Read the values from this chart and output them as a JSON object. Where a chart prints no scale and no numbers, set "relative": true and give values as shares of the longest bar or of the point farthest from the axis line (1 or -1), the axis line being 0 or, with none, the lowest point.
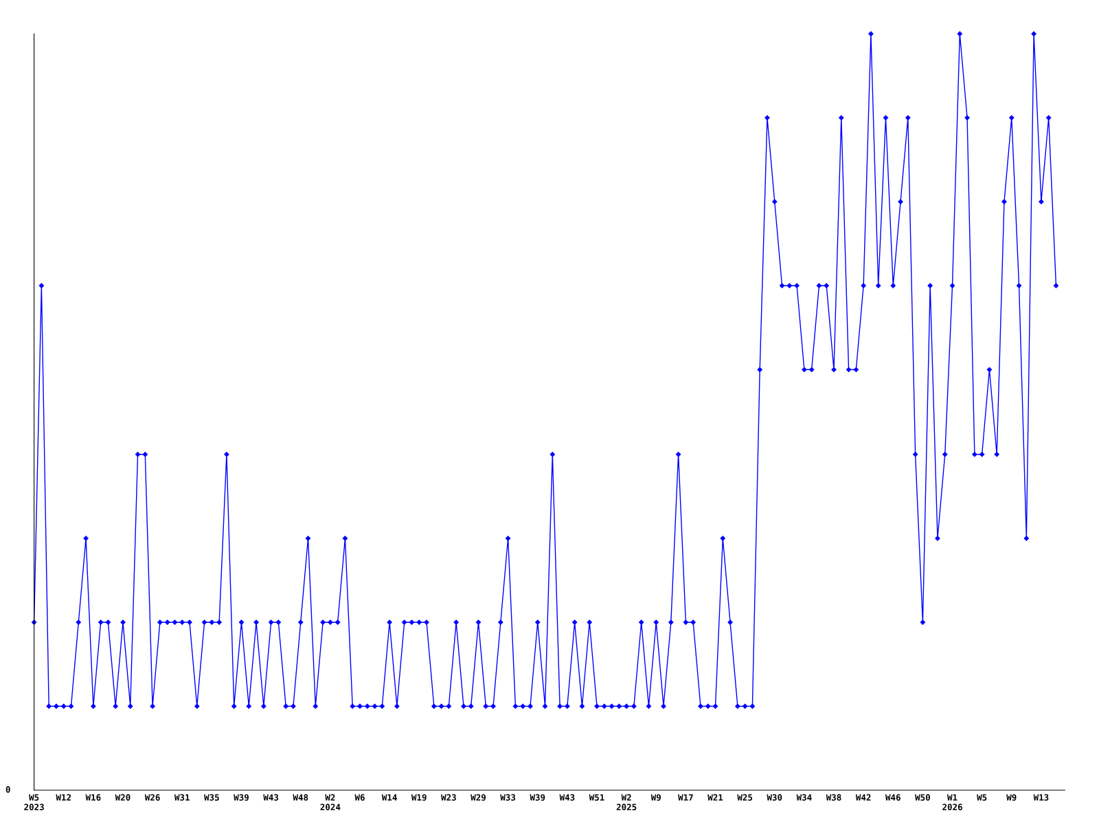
{
  "chart_data": {
    "type": "line",
    "relative": true,
    "color": "#0000ff",
    "marker": "diamond",
    "grid": false,
    "legend": false,
    "annotations": [
      "0"
    ],
    "categories": [
      "W5\n2023",
      null,
      null,
      null,
      "W12",
      null,
      null,
      null,
      "W16",
      null,
      null,
      null,
      "W20",
      null,
      null,
      null,
      "W26",
      null,
      null,
      null,
      "W31",
      null,
      null,
      null,
      "W35",
      null,
      null,
      null,
      "W39",
      null,
      null,
      null,
      "W43",
      null,
      null,
      null,
      "W48",
      null,
      null,
      null,
      "W2\n2024",
      null,
      null,
      null,
      "W6",
      null,
      null,
      null,
      "W14",
      null,
      null,
      null,
      "W19",
      null,
      null,
      null,
      "W23",
      null,
      null,
      null,
      "W29",
      null,
      null,
      null,
      "W33",
      null,
      null,
      null,
      "W39",
      null,
      null,
      null,
      "W43",
      null,
      null,
      null,
      "W51",
      null,
      null,
      null,
      "W2\n2025",
      null,
      null,
      null,
      "W9",
      null,
      null,
      null,
      "W17",
      null,
      null,
      null,
      "W21",
      null,
      null,
      null,
      "W25",
      null,
      null,
      null,
      "W30",
      null,
      null,
      null,
      "W34",
      null,
      null,
      null,
      "W38",
      null,
      null,
      null,
      "W42",
      null,
      null,
      null,
      "W46",
      null,
      null,
      null,
      "W50",
      null,
      null,
      null,
      "W1\n2026",
      null,
      null,
      null,
      "W5",
      null,
      null,
      null,
      "W9",
      null,
      null,
      null,
      "W13",
      null,
      null
    ],
    "values": [
      0.222,
      0.667,
      0.111,
      0.111,
      0.111,
      0.111,
      0.222,
      0.333,
      0.111,
      0.222,
      0.222,
      0.111,
      0.222,
      0.111,
      0.444,
      0.444,
      0.111,
      0.222,
      0.222,
      0.222,
      0.222,
      0.222,
      0.111,
      0.222,
      0.222,
      0.222,
      0.444,
      0.111,
      0.222,
      0.111,
      0.222,
      0.111,
      0.222,
      0.222,
      0.111,
      0.111,
      0.222,
      0.333,
      0.111,
      0.222,
      0.222,
      0.222,
      0.333,
      0.111,
      0.111,
      0.111,
      0.111,
      0.111,
      0.222,
      0.111,
      0.222,
      0.222,
      0.222,
      0.222,
      0.111,
      0.111,
      0.111,
      0.222,
      0.111,
      0.111,
      0.222,
      0.111,
      0.111,
      0.222,
      0.333,
      0.111,
      0.111,
      0.111,
      0.222,
      0.111,
      0.444,
      0.111,
      0.111,
      0.222,
      0.111,
      0.222,
      0.111,
      0.111,
      0.111,
      0.111,
      0.111,
      0.111,
      0.222,
      0.111,
      0.222,
      0.111,
      0.222,
      0.444,
      0.222,
      0.222,
      0.111,
      0.111,
      0.111,
      0.333,
      0.222,
      0.111,
      0.111,
      0.111,
      0.556,
      0.889,
      0.778,
      0.667,
      0.667,
      0.667,
      0.556,
      0.556,
      0.667,
      0.667,
      0.556,
      0.889,
      0.556,
      0.556,
      0.667,
      1,
      0.667,
      0.889,
      0.667,
      0.778,
      0.889,
      0.444,
      0.222,
      0.667,
      0.333,
      0.444,
      0.667,
      1,
      0.889,
      0.444,
      0.444,
      0.556,
      0.444,
      0.778,
      0.889,
      0.667,
      0.333,
      1,
      0.778,
      0.889,
      0.667
    ]
  }
}
